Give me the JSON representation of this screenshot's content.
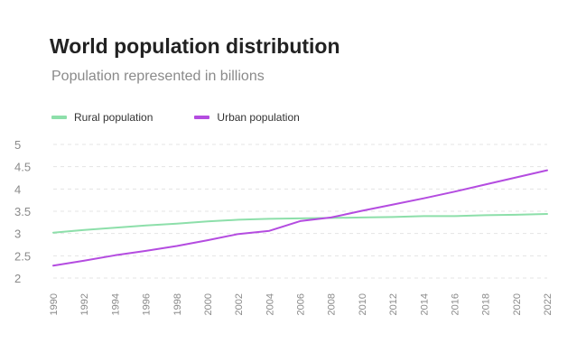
{
  "header": {
    "title": "World population distribution",
    "subtitle": "Population represented in billions"
  },
  "legend": [
    {
      "label": "Rural population",
      "color": "#8ddfaa"
    },
    {
      "label": "Urban population",
      "color": "#b44ce0"
    }
  ],
  "chart_data": {
    "type": "line",
    "title": "World population distribution",
    "subtitle": "Population represented in billions",
    "xlabel": "",
    "ylabel": "",
    "ylim": [
      2,
      5
    ],
    "xlim": [
      1990,
      2022
    ],
    "grid": true,
    "legend_position": "top-left",
    "y_ticks": [
      "5",
      "4.5",
      "4",
      "3.5",
      "3",
      "2.5",
      "2"
    ],
    "y_tick_values": [
      5,
      4.5,
      4,
      3.5,
      3,
      2.5,
      2
    ],
    "x_ticks": [
      "1990",
      "1992",
      "1994",
      "1996",
      "1998",
      "2000",
      "2002",
      "2004",
      "2006",
      "2008",
      "2010",
      "2012",
      "2014",
      "2016",
      "2018",
      "2020",
      "2022"
    ],
    "x": [
      1990,
      1992,
      1994,
      1996,
      1998,
      2000,
      2002,
      2004,
      2006,
      2008,
      2010,
      2012,
      2014,
      2016,
      2018,
      2020,
      2022
    ],
    "series": [
      {
        "name": "Rural population",
        "color": "#8ddfaa",
        "values": [
          3.02,
          3.08,
          3.13,
          3.18,
          3.22,
          3.27,
          3.31,
          3.33,
          3.34,
          3.35,
          3.36,
          3.37,
          3.39,
          3.39,
          3.41,
          3.42,
          3.44
        ]
      },
      {
        "name": "Urban population",
        "color": "#b44ce0",
        "values": [
          2.28,
          2.39,
          2.51,
          2.61,
          2.72,
          2.85,
          2.99,
          3.06,
          3.28,
          3.36,
          3.51,
          3.65,
          3.79,
          3.94,
          4.1,
          4.26,
          4.42
        ]
      }
    ]
  }
}
